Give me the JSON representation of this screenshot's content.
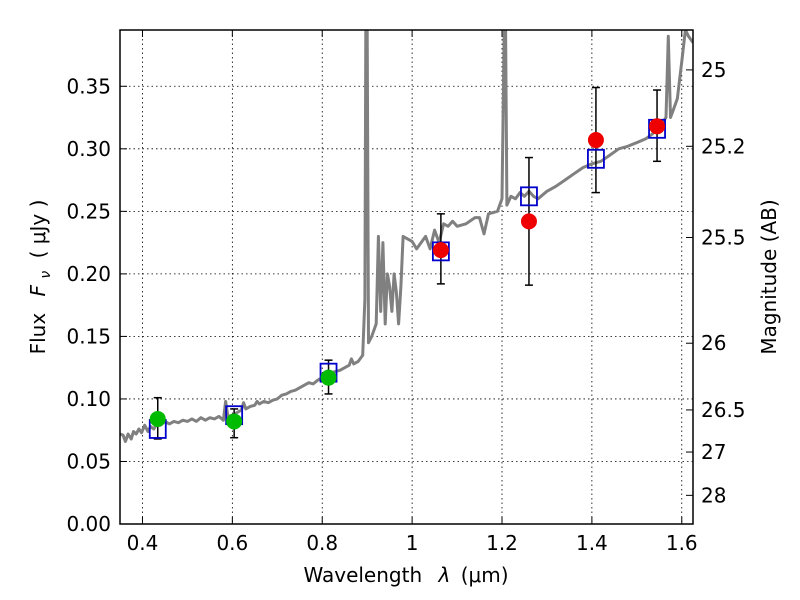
{
  "chart_data": {
    "type": "scatter",
    "x_axis": {
      "label_prefix": "Wavelength",
      "label_symbol": "λ",
      "label_unit": "(μm)",
      "range": [
        0.35,
        1.625
      ],
      "ticks": [
        0.4,
        0.6,
        0.8,
        1.0,
        1.2,
        1.4,
        1.6
      ],
      "tick_labels": [
        "0.4",
        "0.6",
        "0.8",
        "1",
        "1.2",
        "1.4",
        "1.6"
      ]
    },
    "y_axis": {
      "label_prefix": "Flux",
      "label_symbol": "F",
      "label_subscript": "ν",
      "label_unit": "( μJy )",
      "range": [
        0.0,
        0.395
      ],
      "ticks": [
        0.0,
        0.05,
        0.1,
        0.15,
        0.2,
        0.25,
        0.3,
        0.35
      ],
      "tick_labels": [
        "0.00",
        "0.05",
        "0.10",
        "0.15",
        "0.20",
        "0.25",
        "0.30",
        "0.35"
      ]
    },
    "y2_axis": {
      "label": "Magnitude (AB)",
      "ticks": [
        25,
        25.2,
        25.5,
        26,
        26.5,
        27,
        28
      ],
      "tick_labels": [
        "25",
        "25.2",
        "25.5",
        "26",
        "26.5",
        "27",
        "28"
      ]
    },
    "grid": true,
    "colors": {
      "template": "#808080",
      "model_points": "#0000cc",
      "optical_points": "#00bb00",
      "nir_points": "#ee0000",
      "errorbars": "#000000"
    },
    "series": [
      {
        "kind": "template_spectrum",
        "points": [
          [
            0.35,
            0.072
          ],
          [
            0.357,
            0.071
          ],
          [
            0.362,
            0.066
          ],
          [
            0.368,
            0.072
          ],
          [
            0.375,
            0.068
          ],
          [
            0.38,
            0.074
          ],
          [
            0.386,
            0.072
          ],
          [
            0.392,
            0.076
          ],
          [
            0.398,
            0.073
          ],
          [
            0.405,
            0.079
          ],
          [
            0.412,
            0.074
          ],
          [
            0.418,
            0.078
          ],
          [
            0.425,
            0.076
          ],
          [
            0.432,
            0.08
          ],
          [
            0.44,
            0.079
          ],
          [
            0.45,
            0.082
          ],
          [
            0.46,
            0.08
          ],
          [
            0.47,
            0.082
          ],
          [
            0.48,
            0.081
          ],
          [
            0.49,
            0.083
          ],
          [
            0.5,
            0.082
          ],
          [
            0.51,
            0.084
          ],
          [
            0.52,
            0.082
          ],
          [
            0.53,
            0.085
          ],
          [
            0.54,
            0.083
          ],
          [
            0.55,
            0.085
          ],
          [
            0.56,
            0.084
          ],
          [
            0.57,
            0.086
          ],
          [
            0.58,
            0.083
          ],
          [
            0.585,
            0.098
          ],
          [
            0.59,
            0.086
          ],
          [
            0.6,
            0.087
          ],
          [
            0.61,
            0.089
          ],
          [
            0.62,
            0.091
          ],
          [
            0.625,
            0.097
          ],
          [
            0.63,
            0.092
          ],
          [
            0.64,
            0.094
          ],
          [
            0.65,
            0.095
          ],
          [
            0.655,
            0.098
          ],
          [
            0.66,
            0.096
          ],
          [
            0.67,
            0.098
          ],
          [
            0.68,
            0.097
          ],
          [
            0.69,
            0.099
          ],
          [
            0.7,
            0.1
          ],
          [
            0.71,
            0.103
          ],
          [
            0.72,
            0.104
          ],
          [
            0.73,
            0.106
          ],
          [
            0.74,
            0.107
          ],
          [
            0.75,
            0.109
          ],
          [
            0.76,
            0.111
          ],
          [
            0.77,
            0.113
          ],
          [
            0.78,
            0.112
          ],
          [
            0.79,
            0.115
          ],
          [
            0.8,
            0.117
          ],
          [
            0.81,
            0.119
          ],
          [
            0.82,
            0.121
          ],
          [
            0.83,
            0.122
          ],
          [
            0.84,
            0.123
          ],
          [
            0.85,
            0.125
          ],
          [
            0.86,
            0.127
          ],
          [
            0.865,
            0.132
          ],
          [
            0.87,
            0.128
          ],
          [
            0.88,
            0.13
          ],
          [
            0.89,
            0.135
          ],
          [
            0.895,
            0.18
          ],
          [
            0.897,
            0.395
          ],
          [
            0.9,
            0.395
          ],
          [
            0.903,
            0.145
          ],
          [
            0.91,
            0.15
          ],
          [
            0.92,
            0.16
          ],
          [
            0.925,
            0.23
          ],
          [
            0.93,
            0.17
          ],
          [
            0.935,
            0.225
          ],
          [
            0.94,
            0.16
          ],
          [
            0.945,
            0.2
          ],
          [
            0.95,
            0.19
          ],
          [
            0.955,
            0.17
          ],
          [
            0.96,
            0.2
          ],
          [
            0.965,
            0.185
          ],
          [
            0.97,
            0.16
          ],
          [
            0.975,
            0.19
          ],
          [
            0.98,
            0.23
          ],
          [
            0.99,
            0.228
          ],
          [
            1.0,
            0.226
          ],
          [
            1.01,
            0.22
          ],
          [
            1.02,
            0.225
          ],
          [
            1.03,
            0.23
          ],
          [
            1.04,
            0.22
          ],
          [
            1.05,
            0.235
          ],
          [
            1.06,
            0.225
          ],
          [
            1.07,
            0.24
          ],
          [
            1.08,
            0.238
          ],
          [
            1.09,
            0.242
          ],
          [
            1.1,
            0.238
          ],
          [
            1.12,
            0.24
          ],
          [
            1.14,
            0.245
          ],
          [
            1.15,
            0.245
          ],
          [
            1.16,
            0.232
          ],
          [
            1.17,
            0.248
          ],
          [
            1.19,
            0.25
          ],
          [
            1.2,
            0.26
          ],
          [
            1.205,
            0.395
          ],
          [
            1.208,
            0.395
          ],
          [
            1.211,
            0.255
          ],
          [
            1.22,
            0.262
          ],
          [
            1.23,
            0.26
          ],
          [
            1.24,
            0.265
          ],
          [
            1.25,
            0.262
          ],
          [
            1.26,
            0.266
          ],
          [
            1.27,
            0.262
          ],
          [
            1.28,
            0.26
          ],
          [
            1.3,
            0.266
          ],
          [
            1.32,
            0.27
          ],
          [
            1.34,
            0.275
          ],
          [
            1.36,
            0.28
          ],
          [
            1.38,
            0.285
          ],
          [
            1.4,
            0.288
          ],
          [
            1.42,
            0.29
          ],
          [
            1.44,
            0.295
          ],
          [
            1.46,
            0.3
          ],
          [
            1.48,
            0.302
          ],
          [
            1.5,
            0.305
          ],
          [
            1.52,
            0.308
          ],
          [
            1.535,
            0.312
          ],
          [
            1.545,
            0.318
          ],
          [
            1.555,
            0.32
          ],
          [
            1.565,
            0.325
          ],
          [
            1.57,
            0.39
          ],
          [
            1.575,
            0.325
          ],
          [
            1.58,
            0.33
          ],
          [
            1.59,
            0.34
          ],
          [
            1.6,
            0.37
          ],
          [
            1.608,
            0.395
          ],
          [
            1.615,
            0.39
          ],
          [
            1.625,
            0.385
          ]
        ]
      },
      {
        "kind": "model_boxes",
        "points": [
          [
            0.434,
            0.076
          ],
          [
            0.604,
            0.087
          ],
          [
            0.814,
            0.121
          ],
          [
            1.064,
            0.218
          ],
          [
            1.26,
            0.262
          ],
          [
            1.409,
            0.292
          ],
          [
            1.545,
            0.316
          ]
        ]
      },
      {
        "kind": "observed_optical",
        "points": [
          {
            "x": 0.434,
            "y": 0.084,
            "yerr_low": 0.068,
            "yerr_high": 0.101
          },
          {
            "x": 0.604,
            "y": 0.082,
            "yerr_low": 0.069,
            "yerr_high": 0.092
          },
          {
            "x": 0.814,
            "y": 0.117,
            "yerr_low": 0.104,
            "yerr_high": 0.131
          }
        ]
      },
      {
        "kind": "observed_nir",
        "points": [
          {
            "x": 1.064,
            "y": 0.219,
            "yerr_low": 0.192,
            "yerr_high": 0.248
          },
          {
            "x": 1.26,
            "y": 0.242,
            "yerr_low": 0.191,
            "yerr_high": 0.293
          },
          {
            "x": 1.409,
            "y": 0.307,
            "yerr_low": 0.265,
            "yerr_high": 0.349
          },
          {
            "x": 1.545,
            "y": 0.318,
            "yerr_low": 0.29,
            "yerr_high": 0.347
          }
        ]
      }
    ]
  }
}
